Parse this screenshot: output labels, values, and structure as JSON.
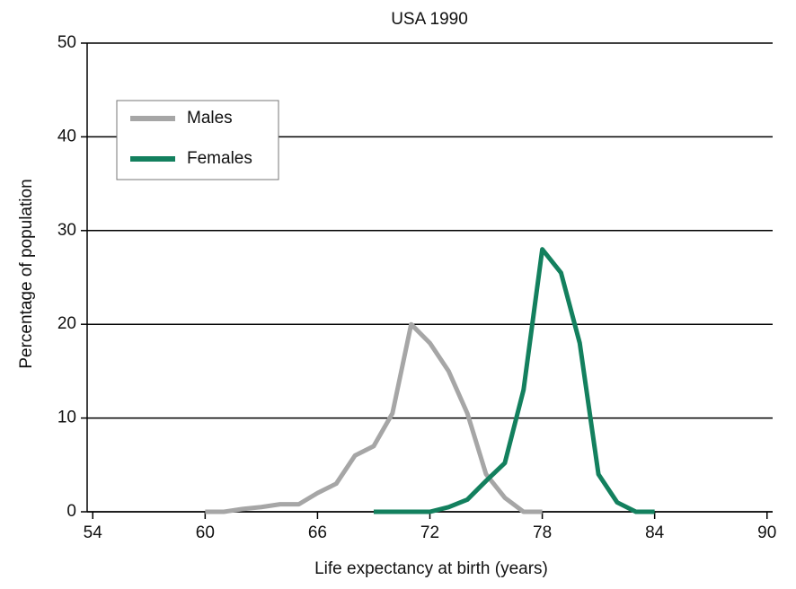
{
  "chart_data": {
    "type": "line",
    "title": "USA 1990",
    "x_label": "Life expectancy at birth (years)",
    "y_label": "Percentage of population",
    "xlim": [
      53.7,
      90.3
    ],
    "xticks": [
      54,
      60,
      66,
      72,
      78,
      84,
      90
    ],
    "ylim": [
      0,
      50
    ],
    "yticks": [
      0,
      10,
      20,
      30,
      40,
      50
    ],
    "grid": true,
    "legend": "upper left",
    "series": [
      {
        "name": "Males",
        "color": "#a6a6a6",
        "x": [
          60,
          61,
          62,
          63,
          64,
          65,
          66,
          67,
          68,
          69,
          70,
          71,
          72,
          73,
          74,
          75,
          76,
          77,
          78
        ],
        "values": [
          0,
          0,
          0.3,
          0.5,
          0.8,
          0.8,
          2,
          3,
          6,
          7,
          10.5,
          20,
          18,
          15,
          10.5,
          4,
          1.5,
          0,
          0
        ]
      },
      {
        "name": "Females",
        "color": "#13805e",
        "x": [
          69,
          70,
          71,
          72,
          73,
          74,
          75,
          76,
          77,
          78,
          79,
          80,
          81,
          82,
          83,
          84
        ],
        "values": [
          0,
          0,
          0,
          0,
          0.5,
          1.3,
          3.3,
          5.2,
          13,
          28,
          25.5,
          18,
          4,
          1,
          0,
          0
        ]
      }
    ]
  }
}
